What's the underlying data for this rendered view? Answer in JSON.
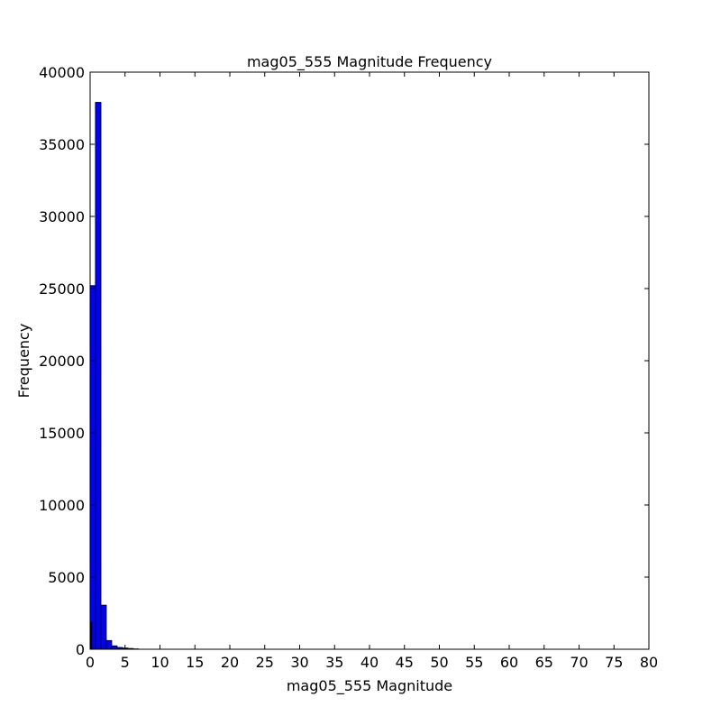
{
  "chart_data": {
    "type": "bar",
    "title": "mag05_555 Magnitude Frequency",
    "xlabel": "mag05_555 Magnitude",
    "ylabel": "Frequency",
    "xlim": [
      0,
      80
    ],
    "ylim": [
      0,
      40000
    ],
    "x_ticks": [
      "0",
      "5",
      "10",
      "15",
      "20",
      "25",
      "30",
      "35",
      "40",
      "45",
      "50",
      "55",
      "60",
      "65",
      "70",
      "75",
      "80"
    ],
    "y_ticks": [
      "0",
      "5000",
      "10000",
      "15000",
      "20000",
      "25000",
      "30000",
      "35000",
      "40000"
    ],
    "grid": false,
    "series": [
      {
        "color": "#0000ff",
        "bins": [
          {
            "x0": 0.0,
            "x1": 0.77,
            "value": 25200
          },
          {
            "x0": 0.77,
            "x1": 1.54,
            "value": 37900
          },
          {
            "x0": 1.54,
            "x1": 2.31,
            "value": 3050
          },
          {
            "x0": 2.31,
            "x1": 3.08,
            "value": 600
          },
          {
            "x0": 3.08,
            "x1": 3.85,
            "value": 230
          },
          {
            "x0": 3.85,
            "x1": 4.62,
            "value": 120
          },
          {
            "x0": 4.62,
            "x1": 5.39,
            "value": 80
          },
          {
            "x0": 5.39,
            "x1": 6.16,
            "value": 50
          },
          {
            "x0": 6.16,
            "x1": 6.93,
            "value": 20
          }
        ]
      }
    ],
    "overlay_bins": [
      {
        "x0": 0.0,
        "x1": 0.3,
        "value": 1900,
        "color": "#000000"
      }
    ]
  }
}
